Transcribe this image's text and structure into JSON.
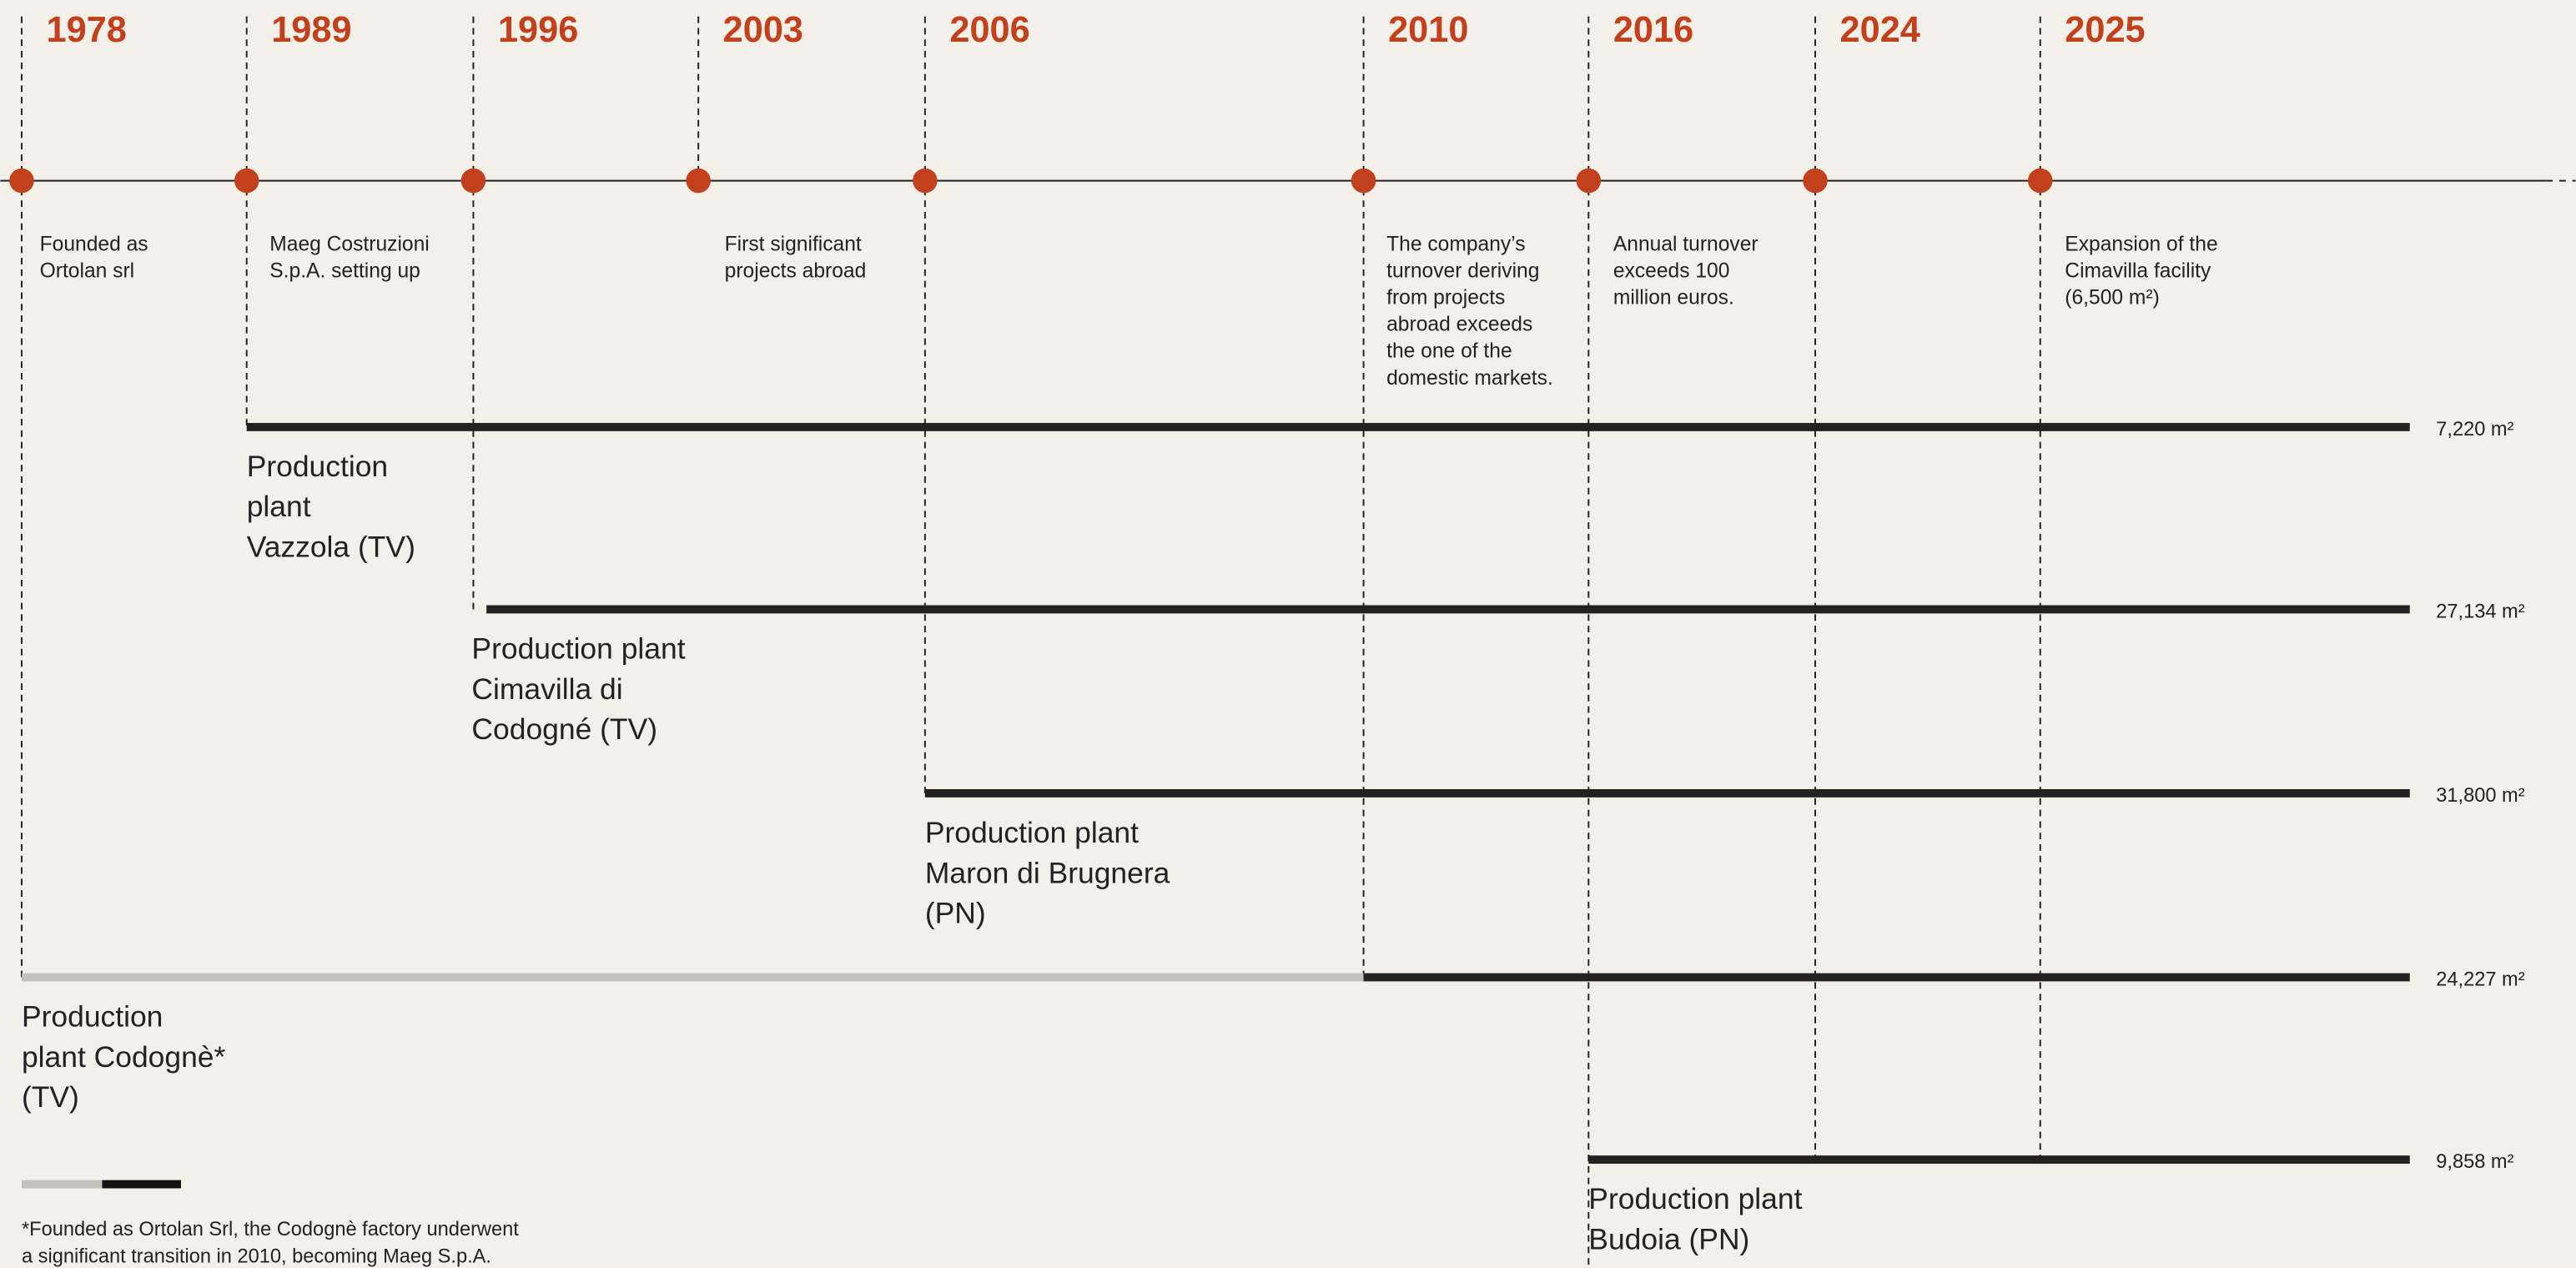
{
  "years": [
    "1978",
    "1989",
    "1996",
    "2003",
    "2006",
    "2010",
    "2016",
    "2024",
    "2025"
  ],
  "events": [
    {
      "lines": [
        "Founded as",
        "Ortolan srl"
      ]
    },
    {
      "lines": [
        "Maeg Costruzioni",
        "S.p.A. setting up"
      ]
    },
    {
      "lines": [
        "First significant",
        "projects abroad"
      ]
    },
    {
      "lines": [
        "The company’s",
        "turnover deriving",
        "from projects",
        "abroad exceeds",
        "the one of the",
        "domestic markets."
      ]
    },
    {
      "lines": [
        "Annual turnover",
        "exceeds 100",
        "million euros."
      ]
    },
    {
      "lines": [
        "Expansion of the",
        "Cimavilla facility",
        "(6,500 m²)"
      ]
    }
  ],
  "plants": [
    {
      "lines": [
        "Production",
        "plant",
        "Vazzola (TV)"
      ],
      "area": "7,220 m²"
    },
    {
      "lines": [
        "Production plant",
        "Cimavilla di",
        "Codogné (TV)"
      ],
      "area": "27,134 m²"
    },
    {
      "lines": [
        "Production plant",
        "Maron di Brugnera",
        "(PN)"
      ],
      "area": "31,800 m²"
    },
    {
      "lines": [
        "Production",
        "plant Codognè*",
        "(TV)"
      ],
      "area": "24,227 m²"
    },
    {
      "lines": [
        "Production plant",
        "Budoia (PN)"
      ],
      "area": "9,858 m²"
    }
  ],
  "footnote": [
    "*Founded as Ortolan Srl, the Codognè factory underwent",
    "a significant transition in 2010, becoming Maeg S.p.A."
  ]
}
